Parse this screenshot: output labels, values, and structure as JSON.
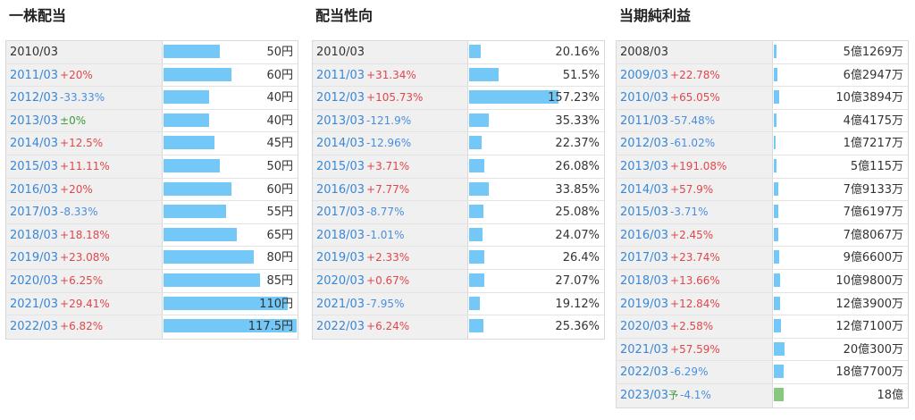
{
  "panels": [
    {
      "title": "一株配当",
      "scale_max": 117.5,
      "rows": [
        {
          "year": "2010/03",
          "change": "",
          "change_dir": "",
          "value": "50円",
          "num": 50
        },
        {
          "year": "2011/03",
          "change": "+20%",
          "change_dir": "up",
          "value": "60円",
          "num": 60
        },
        {
          "year": "2012/03",
          "change": "-33.33%",
          "change_dir": "down",
          "value": "40円",
          "num": 40
        },
        {
          "year": "2013/03",
          "change": "±0%",
          "change_dir": "flat",
          "value": "40円",
          "num": 40
        },
        {
          "year": "2014/03",
          "change": "+12.5%",
          "change_dir": "up",
          "value": "45円",
          "num": 45
        },
        {
          "year": "2015/03",
          "change": "+11.11%",
          "change_dir": "up",
          "value": "50円",
          "num": 50
        },
        {
          "year": "2016/03",
          "change": "+20%",
          "change_dir": "up",
          "value": "60円",
          "num": 60
        },
        {
          "year": "2017/03",
          "change": "-8.33%",
          "change_dir": "down",
          "value": "55円",
          "num": 55
        },
        {
          "year": "2018/03",
          "change": "+18.18%",
          "change_dir": "up",
          "value": "65円",
          "num": 65
        },
        {
          "year": "2019/03",
          "change": "+23.08%",
          "change_dir": "up",
          "value": "80円",
          "num": 80
        },
        {
          "year": "2020/03",
          "change": "+6.25%",
          "change_dir": "up",
          "value": "85円",
          "num": 85
        },
        {
          "year": "2021/03",
          "change": "+29.41%",
          "change_dir": "up",
          "value": "110円",
          "num": 110
        },
        {
          "year": "2022/03",
          "change": "+6.82%",
          "change_dir": "up",
          "value": "117.5円",
          "num": 117.5
        }
      ]
    },
    {
      "title": "配当性向",
      "scale_max": 157.23,
      "rows": [
        {
          "year": "2010/03",
          "change": "",
          "change_dir": "",
          "value": "20.16%",
          "num": 20.16
        },
        {
          "year": "2011/03",
          "change": "+31.34%",
          "change_dir": "up",
          "value": "51.5%",
          "num": 51.5
        },
        {
          "year": "2012/03",
          "change": "+105.73%",
          "change_dir": "up",
          "value": "157.23%",
          "num": 157.23
        },
        {
          "year": "2013/03",
          "change": "-121.9%",
          "change_dir": "down",
          "value": "35.33%",
          "num": 35.33
        },
        {
          "year": "2014/03",
          "change": "-12.96%",
          "change_dir": "down",
          "value": "22.37%",
          "num": 22.37
        },
        {
          "year": "2015/03",
          "change": "+3.71%",
          "change_dir": "up",
          "value": "26.08%",
          "num": 26.08
        },
        {
          "year": "2016/03",
          "change": "+7.77%",
          "change_dir": "up",
          "value": "33.85%",
          "num": 33.85
        },
        {
          "year": "2017/03",
          "change": "-8.77%",
          "change_dir": "down",
          "value": "25.08%",
          "num": 25.08
        },
        {
          "year": "2018/03",
          "change": "-1.01%",
          "change_dir": "down",
          "value": "24.07%",
          "num": 24.07
        },
        {
          "year": "2019/03",
          "change": "+2.33%",
          "change_dir": "up",
          "value": "26.4%",
          "num": 26.4
        },
        {
          "year": "2020/03",
          "change": "+0.67%",
          "change_dir": "up",
          "value": "27.07%",
          "num": 27.07
        },
        {
          "year": "2021/03",
          "change": "-7.95%",
          "change_dir": "down",
          "value": "19.12%",
          "num": 19.12
        },
        {
          "year": "2022/03",
          "change": "+6.24%",
          "change_dir": "up",
          "value": "25.36%",
          "num": 25.36
        }
      ]
    },
    {
      "title": "当期純利益",
      "scale_max": 1000,
      "rows": [
        {
          "year": "2008/03",
          "change": "",
          "change_dir": "",
          "value": "5億1269万",
          "num": 5.1269
        },
        {
          "year": "2009/03",
          "change": "+22.78%",
          "change_dir": "up",
          "value": "6億2947万",
          "num": 6.2947
        },
        {
          "year": "2010/03",
          "change": "+65.05%",
          "change_dir": "up",
          "value": "10億3894万",
          "num": 10.3894
        },
        {
          "year": "2011/03",
          "change": "-57.48%",
          "change_dir": "down",
          "value": "4億4175万",
          "num": 4.4175
        },
        {
          "year": "2012/03",
          "change": "-61.02%",
          "change_dir": "down",
          "value": "1億7217万",
          "num": 1.7217
        },
        {
          "year": "2013/03",
          "change": "+191.08%",
          "change_dir": "up",
          "value": "5億115万",
          "num": 5.0115
        },
        {
          "year": "2014/03",
          "change": "+57.9%",
          "change_dir": "up",
          "value": "7億9133万",
          "num": 7.9133
        },
        {
          "year": "2015/03",
          "change": "-3.71%",
          "change_dir": "down",
          "value": "7億6197万",
          "num": 7.6197
        },
        {
          "year": "2016/03",
          "change": "+2.45%",
          "change_dir": "up",
          "value": "7億8067万",
          "num": 7.8067
        },
        {
          "year": "2017/03",
          "change": "+23.74%",
          "change_dir": "up",
          "value": "9億6600万",
          "num": 9.66
        },
        {
          "year": "2018/03",
          "change": "+13.66%",
          "change_dir": "up",
          "value": "10億9800万",
          "num": 10.98
        },
        {
          "year": "2019/03",
          "change": "+12.84%",
          "change_dir": "up",
          "value": "12億3900万",
          "num": 12.39
        },
        {
          "year": "2020/03",
          "change": "+2.58%",
          "change_dir": "up",
          "value": "12億7100万",
          "num": 12.71
        },
        {
          "year": "2021/03",
          "change": "+57.59%",
          "change_dir": "up",
          "value": "20億300万",
          "num": 20.03
        },
        {
          "year": "2022/03",
          "change": "-6.29%",
          "change_dir": "down",
          "value": "18億7700万",
          "num": 18.77
        },
        {
          "year": "2023/03",
          "forecast_mark": "予",
          "change": "-4.1%",
          "change_dir": "down",
          "value": "18億",
          "num": 18,
          "forecast": true
        }
      ]
    }
  ],
  "colors": {
    "bar": "#74c8f7",
    "forecast_bar": "#86c97c",
    "up": "#e0474c",
    "down": "#4a8fde",
    "flat": "#3d9a3d"
  },
  "chart_data": [
    {
      "type": "bar",
      "title": "一株配当",
      "categories": [
        "2010/03",
        "2011/03",
        "2012/03",
        "2013/03",
        "2014/03",
        "2015/03",
        "2016/03",
        "2017/03",
        "2018/03",
        "2019/03",
        "2020/03",
        "2021/03",
        "2022/03"
      ],
      "values": [
        50,
        60,
        40,
        40,
        45,
        50,
        60,
        55,
        65,
        80,
        85,
        110,
        117.5
      ]
    },
    {
      "type": "bar",
      "title": "配当性向",
      "categories": [
        "2010/03",
        "2011/03",
        "2012/03",
        "2013/03",
        "2014/03",
        "2015/03",
        "2016/03",
        "2017/03",
        "2018/03",
        "2019/03",
        "2020/03",
        "2021/03",
        "2022/03"
      ],
      "values": [
        20.16,
        51.5,
        157.23,
        35.33,
        22.37,
        26.08,
        33.85,
        25.08,
        24.07,
        26.4,
        27.07,
        19.12,
        25.36
      ]
    },
    {
      "type": "bar",
      "title": "当期純利益",
      "categories": [
        "2008/03",
        "2009/03",
        "2010/03",
        "2011/03",
        "2012/03",
        "2013/03",
        "2014/03",
        "2015/03",
        "2016/03",
        "2017/03",
        "2018/03",
        "2019/03",
        "2020/03",
        "2021/03",
        "2022/03",
        "2023/03"
      ],
      "values": [
        5.1269,
        6.2947,
        10.3894,
        4.4175,
        1.7217,
        5.0115,
        7.9133,
        7.6197,
        7.8067,
        9.66,
        10.98,
        12.39,
        12.71,
        20.03,
        18.77,
        18
      ]
    }
  ]
}
